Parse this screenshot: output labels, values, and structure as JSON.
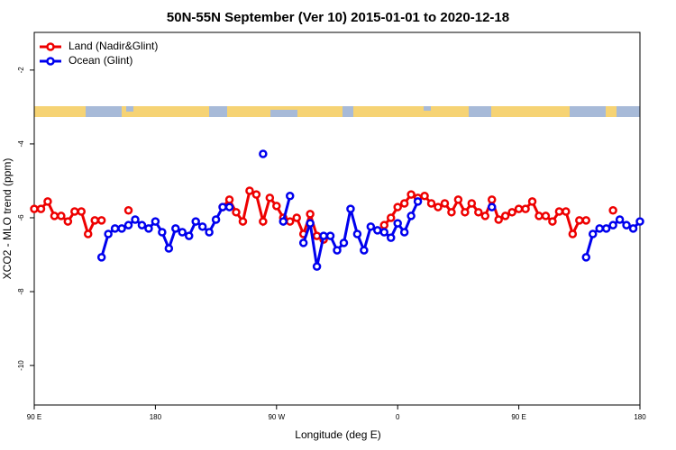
{
  "chart_data": {
    "type": "line",
    "title": "50N-55N September (Ver 10)   2015-01-01 to 2020-12-18",
    "xlabel": "Longitude (deg E)",
    "ylabel": "XCO2 - MLO trend (ppm)",
    "x": [
      90,
      95,
      100,
      105,
      110,
      115,
      120,
      125,
      130,
      135,
      140,
      145,
      150,
      155,
      160,
      165,
      170,
      175,
      180,
      185,
      190,
      195,
      200,
      205,
      210,
      215,
      220,
      225,
      230,
      235,
      240,
      245,
      250,
      255,
      260,
      265,
      270,
      275,
      280,
      285,
      290,
      295,
      300,
      305,
      310,
      315,
      320,
      325,
      330,
      335,
      340,
      345,
      350,
      355,
      360,
      365,
      370,
      375,
      380,
      385,
      390,
      395,
      400,
      405,
      410,
      415,
      420,
      425,
      430,
      435,
      440,
      445,
      450,
      455,
      460,
      465,
      470,
      475,
      480,
      485,
      490,
      495,
      500,
      505,
      510,
      515,
      520,
      525,
      530,
      535,
      540
    ],
    "series": [
      {
        "name": "Land (Nadir&Glint)",
        "color": "#ee0000",
        "values": [
          -5.76,
          -5.76,
          -5.56,
          -5.95,
          -5.95,
          -6.1,
          -5.83,
          -5.83,
          -6.44,
          -6.07,
          -6.07,
          null,
          null,
          null,
          -5.8,
          null,
          null,
          null,
          null,
          null,
          null,
          null,
          null,
          null,
          null,
          null,
          null,
          null,
          -5.71,
          -5.51,
          -5.85,
          -6.1,
          -5.27,
          -5.37,
          -6.1,
          -5.46,
          -5.68,
          -6.0,
          -6.1,
          -6.0,
          -6.44,
          -5.9,
          -6.49,
          -6.59,
          null,
          null,
          null,
          null,
          null,
          null,
          null,
          null,
          -6.2,
          -6.0,
          -5.71,
          -5.61,
          -5.37,
          -5.46,
          -5.41,
          -5.61,
          -5.71,
          -5.61,
          -5.85,
          -5.51,
          -5.85,
          -5.61,
          -5.85,
          -5.95,
          -5.51,
          -6.05,
          -5.95,
          -5.85,
          -5.76,
          -5.76,
          -5.56,
          -5.95,
          -5.95,
          -6.1,
          -5.83,
          -5.83,
          -6.44,
          -6.07,
          -6.07,
          null,
          null,
          null,
          -5.8,
          null,
          null,
          null,
          null
        ]
      },
      {
        "name": "Ocean (Glint)",
        "color": "#0000ee",
        "values": [
          null,
          null,
          null,
          null,
          null,
          null,
          null,
          null,
          null,
          null,
          -7.07,
          -6.44,
          -6.29,
          -6.29,
          -6.2,
          -6.05,
          -6.2,
          -6.29,
          -6.1,
          -6.39,
          -6.83,
          -6.29,
          -6.39,
          -6.49,
          -6.1,
          -6.24,
          -6.39,
          -6.05,
          -5.71,
          -5.71,
          null,
          null,
          null,
          null,
          -4.27,
          null,
          null,
          -6.1,
          -5.41,
          null,
          -6.68,
          -6.15,
          -7.32,
          -6.49,
          -6.49,
          -6.88,
          -6.68,
          -5.76,
          -6.44,
          -6.88,
          -6.24,
          -6.34,
          -6.39,
          -6.54,
          -6.15,
          -6.39,
          -5.95,
          -5.56,
          null,
          null,
          null,
          null,
          null,
          null,
          null,
          null,
          null,
          null,
          -5.71,
          null,
          null,
          null,
          null,
          null,
          null,
          null,
          null,
          null,
          null,
          null,
          null,
          null,
          -7.07,
          -6.44,
          -6.29,
          -6.29,
          -6.2,
          -6.05,
          -6.2,
          -6.29,
          -6.1
        ]
      }
    ],
    "xlim": [
      90,
      540
    ],
    "xticks": [
      {
        "value": 90,
        "label": "90 E"
      },
      180,
      {
        "value": 270,
        "label": "90 W"
      },
      {
        "value": 360,
        "label": "0"
      },
      {
        "value": 450,
        "label": "90 E"
      },
      {
        "value": 540,
        "label": "180"
      }
    ],
    "ylim": [
      -11.07,
      -0.98
    ],
    "yticks": [
      -2,
      -4,
      -6,
      -8,
      -10
    ],
    "legend": "top-left"
  }
}
